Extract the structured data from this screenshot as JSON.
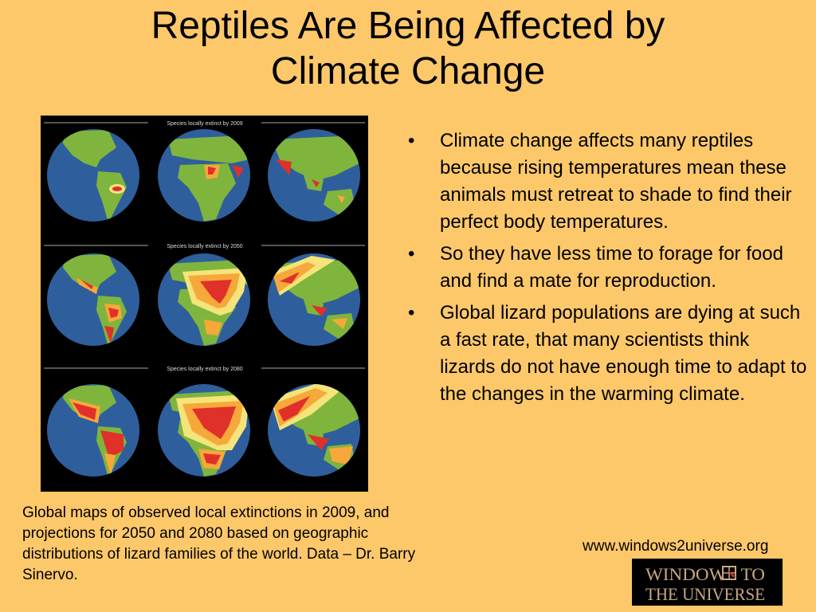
{
  "slide": {
    "title_line1": "Reptiles Are Being Affected by",
    "title_line2": "Climate Change"
  },
  "figure": {
    "panels": [
      {
        "label": "Species locally extinct by 2009"
      },
      {
        "label": "Species locally extinct by 2050"
      },
      {
        "label": "Species locally extinct by 2080"
      }
    ],
    "colors": {
      "ocean": "#2e5f9c",
      "land": "#7fb53c",
      "high": "#e0302a",
      "mid": "#f7a83a",
      "low": "#f4e47a"
    }
  },
  "bullets": [
    {
      "marker": "•",
      "text": "Climate change affects many reptiles because rising temperatures mean these animals must retreat to shade to find their perfect body temperatures."
    },
    {
      "marker": "•",
      "text": "So they have less time to forage for food and find a mate for reproduction."
    },
    {
      "marker": "•",
      "text": "Global lizard populations are dying at such a fast rate, that many scientists think lizards do not have enough time to adapt to the changes in the warming climate."
    }
  ],
  "caption": "Global maps of observed local extinctions in 2009, and projections for 2050 and 2080 based on geographic distributions of lizard families of the world. Data – Dr. Barry Sinervo.",
  "footer": {
    "url": "www.windows2universe.org",
    "logo_line1": "WINDOWS TO",
    "logo_line2": "THE UNIVERSE"
  },
  "colors": {
    "background": "#fdc86a",
    "logo_text": "#c8a882"
  }
}
